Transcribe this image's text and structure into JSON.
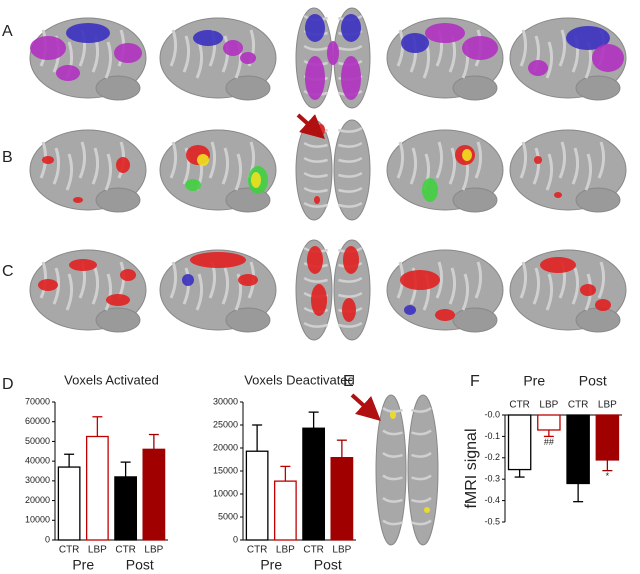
{
  "panels": {
    "a": "A",
    "b": "B",
    "c": "C",
    "d": "D",
    "e": "E",
    "f": "F"
  },
  "chart_data": [
    {
      "type": "bar",
      "title": "Voxels Activated",
      "categories": [
        "CTR",
        "LBP",
        "CTR",
        "LBP"
      ],
      "groups": [
        "Pre",
        "Post"
      ],
      "values": [
        37000,
        52500,
        32000,
        46000
      ],
      "errors": [
        6500,
        10000,
        7500,
        7500
      ],
      "edge_colors": [
        "#000000",
        "#c00000",
        "#000000",
        "#a00000"
      ],
      "fill_colors": [
        "#ffffff",
        "#ffffff",
        "#000000",
        "#a00000"
      ],
      "ylim": [
        0,
        70000
      ],
      "yticks": [
        0,
        10000,
        20000,
        30000,
        40000,
        50000,
        60000,
        70000
      ]
    },
    {
      "type": "bar",
      "title": "Voxels Deactivated",
      "categories": [
        "CTR",
        "LBP",
        "CTR",
        "LBP"
      ],
      "groups": [
        "Pre",
        "Post"
      ],
      "values": [
        19300,
        12800,
        24300,
        17900
      ],
      "errors": [
        5700,
        3200,
        3500,
        3800
      ],
      "edge_colors": [
        "#000000",
        "#c00000",
        "#000000",
        "#a00000"
      ],
      "fill_colors": [
        "#ffffff",
        "#ffffff",
        "#000000",
        "#a00000"
      ],
      "ylim": [
        0,
        30000
      ],
      "yticks": [
        0,
        5000,
        10000,
        15000,
        20000,
        25000,
        30000
      ]
    },
    {
      "type": "bar",
      "y_label": "fMRI signal",
      "categories": [
        "CTR",
        "LBP",
        "CTR",
        "LBP"
      ],
      "groups": [
        "Pre",
        "Post"
      ],
      "values": [
        -0.255,
        -0.07,
        -0.32,
        -0.21
      ],
      "errors": [
        0.035,
        0.03,
        0.085,
        0.05
      ],
      "edge_colors": [
        "#000000",
        "#c00000",
        "#000000",
        "#a00000"
      ],
      "fill_colors": [
        "#ffffff",
        "#ffffff",
        "#000000",
        "#a00000"
      ],
      "annotations": [
        {
          "index": 1,
          "text": "##"
        },
        {
          "index": 3,
          "text": "*"
        }
      ],
      "ylim": [
        -0.5,
        0
      ],
      "yticks": [
        {
          "value": 0,
          "label": "-0.0"
        },
        -0.1,
        -0.2,
        -0.3,
        -0.4,
        -0.5
      ]
    }
  ]
}
